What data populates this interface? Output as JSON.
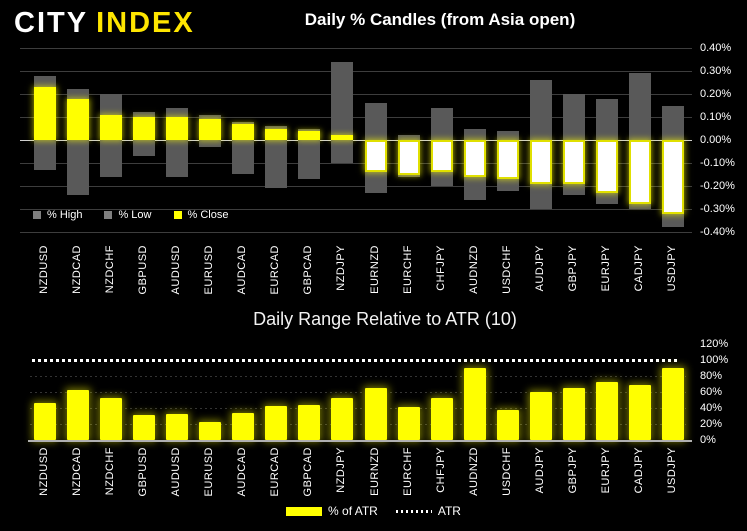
{
  "header": {
    "logo_city": "CITY",
    "logo_index": "INDEX"
  },
  "chart_data": [
    {
      "id": "candles",
      "type": "bar",
      "title": "Daily % Candles (from Asia open)",
      "categories": [
        "NZDUSD",
        "NZDCAD",
        "NZDCHF",
        "GBPUSD",
        "AUDUSD",
        "EURUSD",
        "AUDCAD",
        "EURCAD",
        "GBPCAD",
        "NZDJPY",
        "EURNZD",
        "EURCHF",
        "CHFJPY",
        "AUDNZD",
        "USDCHF",
        "AUDJPY",
        "GBPJPY",
        "EURJPY",
        "CADJPY",
        "USDJPY"
      ],
      "series": [
        {
          "name": "% High",
          "values": [
            0.28,
            0.22,
            0.2,
            0.12,
            0.14,
            0.11,
            0.08,
            0.06,
            0.05,
            0.34,
            0.16,
            0.02,
            0.14,
            0.05,
            0.04,
            0.26,
            0.2,
            0.18,
            0.29,
            0.15
          ]
        },
        {
          "name": "% Low",
          "values": [
            -0.13,
            -0.24,
            -0.16,
            -0.07,
            -0.16,
            -0.03,
            -0.15,
            -0.21,
            -0.17,
            -0.1,
            -0.23,
            -0.16,
            -0.2,
            -0.26,
            -0.22,
            -0.3,
            -0.24,
            -0.28,
            -0.3,
            -0.38
          ]
        },
        {
          "name": "% Close",
          "values": [
            0.23,
            0.18,
            0.11,
            0.1,
            0.1,
            0.09,
            0.07,
            0.05,
            0.04,
            0.02,
            -0.14,
            -0.15,
            -0.14,
            -0.16,
            -0.17,
            -0.19,
            -0.19,
            -0.23,
            -0.28,
            -0.32
          ]
        }
      ],
      "ylim": [
        -0.4,
        0.4
      ],
      "ytick_values": [
        0.4,
        0.3,
        0.2,
        0.1,
        0,
        -0.1,
        -0.2,
        -0.3,
        -0.4
      ],
      "ytick_labels": [
        "0.40%",
        "0.30%",
        "0.20%",
        "0.10%",
        "0.00%",
        "-0.10%",
        "-0.20%",
        "-0.30%",
        "-0.40%"
      ],
      "grid": true,
      "legend": {
        "position": "inside-bottom-left",
        "entries": [
          "% High",
          "% Low",
          "% Close"
        ]
      },
      "colors": {
        "range_bar": "#595959",
        "close_up": "#ffff00",
        "close_down_fill": "#ffffff",
        "close_down_border": "#e0e000",
        "legend_swatch_gray": "#7f7f7f"
      }
    },
    {
      "id": "atr",
      "type": "bar",
      "title": "Daily Range Relative to ATR (10)",
      "categories": [
        "NZDUSD",
        "NZDCAD",
        "NZDCHF",
        "GBPUSD",
        "AUDUSD",
        "EURUSD",
        "AUDCAD",
        "EURCAD",
        "GBPCAD",
        "NZDJPY",
        "EURNZD",
        "EURCHF",
        "CHFJPY",
        "AUDNZD",
        "USDCHF",
        "AUDJPY",
        "GBPJPY",
        "EURJPY",
        "CADJPY",
        "USDJPY"
      ],
      "series": [
        {
          "name": "% of ATR",
          "values": [
            46,
            62,
            52,
            31,
            32,
            22,
            34,
            42,
            44,
            53,
            65,
            41,
            53,
            90,
            38,
            60,
            65,
            72,
            69,
            90
          ]
        }
      ],
      "reference_line": {
        "name": "ATR",
        "value": 100,
        "style": "dotted"
      },
      "ylim": [
        0,
        120
      ],
      "ytick_values": [
        120,
        100,
        80,
        60,
        40,
        20,
        0
      ],
      "ytick_labels": [
        "120%",
        "100%",
        "80%",
        "60%",
        "40%",
        "20%",
        "0%"
      ],
      "grid": true,
      "legend": {
        "position": "bottom-center",
        "entries": [
          "% of ATR",
          "ATR"
        ]
      },
      "colors": {
        "bar": "#ffff00",
        "reference_line": "#ffffff"
      }
    }
  ]
}
